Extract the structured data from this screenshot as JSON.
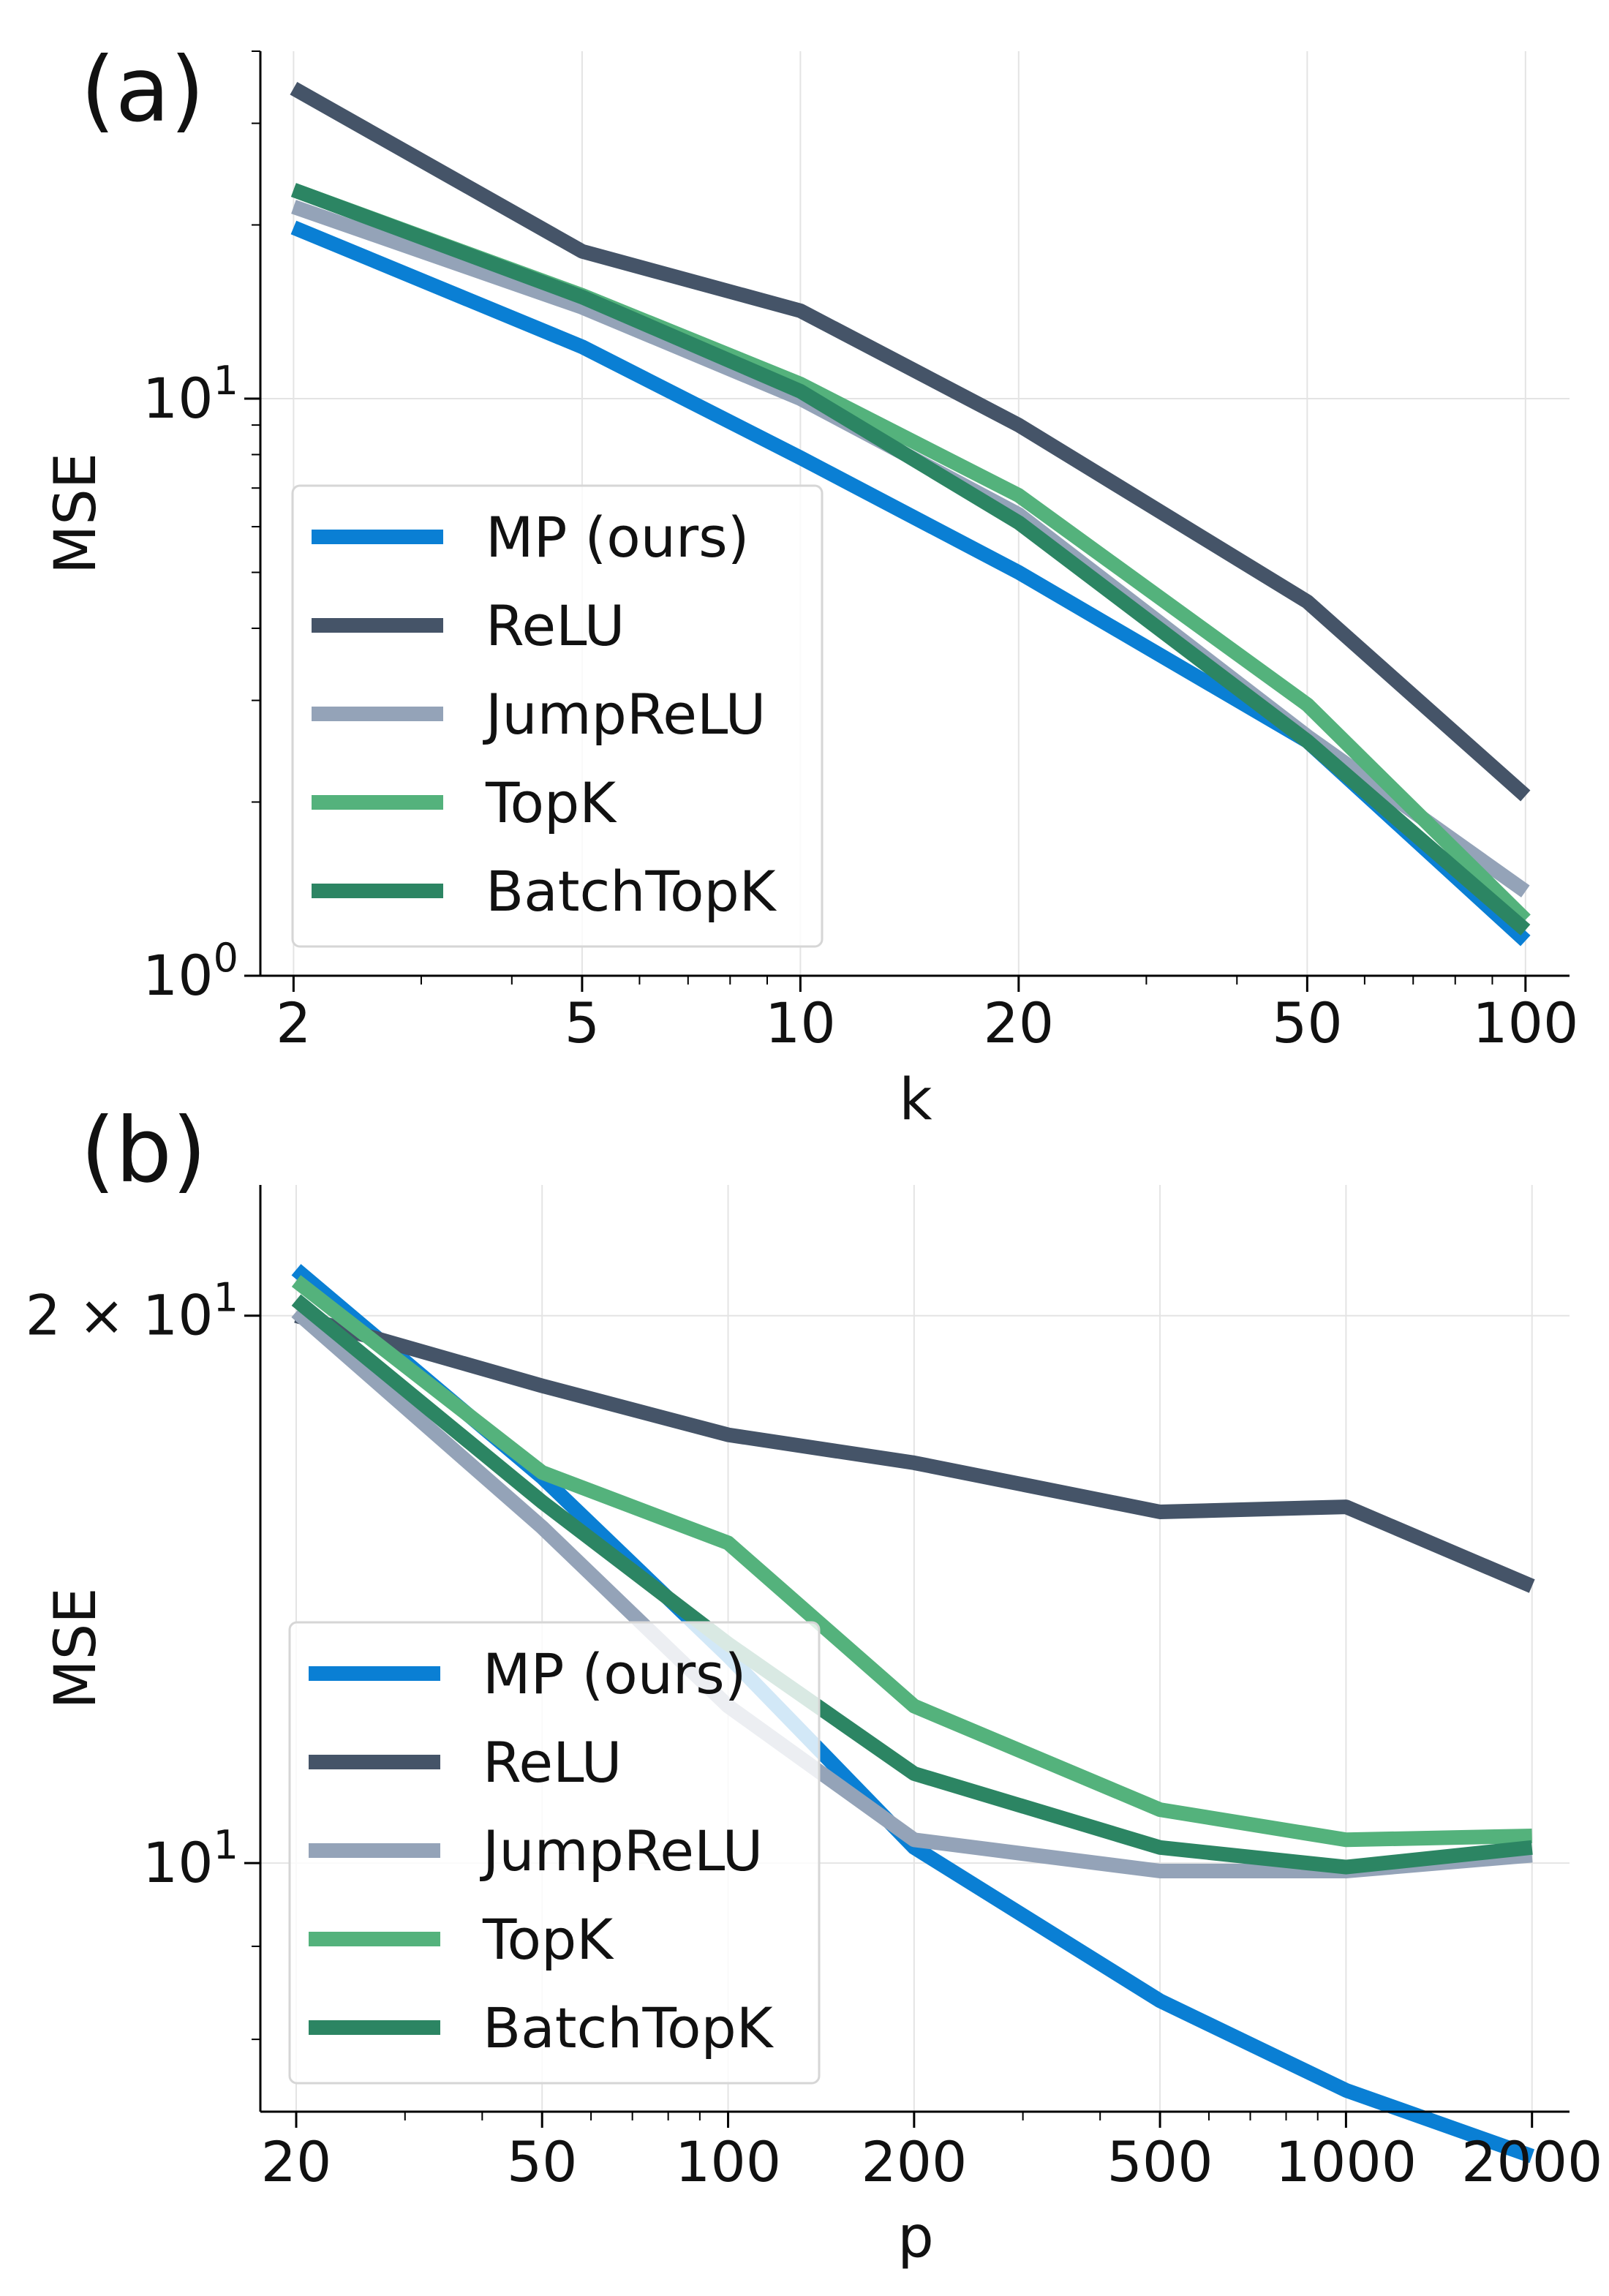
{
  "chart_data": [
    {
      "type": "line",
      "panel_label": "(a)",
      "xlabel": "k",
      "ylabel": "MSE",
      "x_scale": "log",
      "y_scale": "log",
      "xlim": [
        1.8,
        115
      ],
      "ylim": [
        1.0,
        40
      ],
      "grid": true,
      "legend_position": "lower-left",
      "xticks": [
        {
          "value": 2,
          "label": "2"
        },
        {
          "value": 5,
          "label": "5"
        },
        {
          "value": 10,
          "label": "10"
        },
        {
          "value": 20,
          "label": "20"
        },
        {
          "value": 50,
          "label": "50"
        },
        {
          "value": 100,
          "label": "100"
        }
      ],
      "yticks": [
        {
          "value": 1,
          "base": "10",
          "exp": "0"
        },
        {
          "value": 10,
          "base": "10",
          "exp": "1"
        }
      ],
      "x": [
        2,
        5,
        10,
        20,
        50,
        100
      ],
      "series": [
        {
          "name": "MP (ours)",
          "color": "#0a7fd4",
          "values": [
            19.8,
            12.3,
            7.9,
            5.0,
            2.55,
            1.15
          ]
        },
        {
          "name": "ReLU",
          "color": "#455468",
          "values": [
            34.5,
            18.0,
            14.2,
            9.0,
            4.45,
            2.05
          ]
        },
        {
          "name": "JumpReLU",
          "color": "#94a3b8",
          "values": [
            21.5,
            14.4,
            10.0,
            6.3,
            2.6,
            1.4
          ]
        },
        {
          "name": "TopK",
          "color": "#54b27c",
          "values": [
            23.0,
            15.1,
            10.6,
            6.8,
            2.95,
            1.25
          ]
        },
        {
          "name": "BatchTopK",
          "color": "#2c8563",
          "values": [
            23.0,
            15.0,
            10.3,
            6.1,
            2.55,
            1.2
          ]
        }
      ]
    },
    {
      "type": "line",
      "panel_label": "(b)",
      "xlabel": "p",
      "ylabel": "MSE",
      "x_scale": "log",
      "y_scale": "log",
      "xlim": [
        17.5,
        2300
      ],
      "ylim": [
        7.3,
        23.6
      ],
      "grid": true,
      "legend_position": "lower-left",
      "xticks": [
        {
          "value": 20,
          "label": "20"
        },
        {
          "value": 50,
          "label": "50"
        },
        {
          "value": 100,
          "label": "100"
        },
        {
          "value": 200,
          "label": "200"
        },
        {
          "value": 500,
          "label": "500"
        },
        {
          "value": 1000,
          "label": "1000"
        },
        {
          "value": 2000,
          "label": "2000"
        }
      ],
      "yticks": [
        {
          "value": 10,
          "base": "10",
          "exp": "1"
        },
        {
          "value": 20,
          "base": "2 × 10",
          "exp": "1"
        }
      ],
      "x": [
        20,
        50,
        100,
        200,
        500,
        1000,
        2000
      ],
      "series": [
        {
          "name": "MP (ours)",
          "color": "#0a7fd4",
          "values": [
            21.2,
            16.3,
            13.0,
            10.2,
            8.4,
            7.5,
            6.9
          ]
        },
        {
          "name": "ReLU",
          "color": "#455468",
          "values": [
            20.0,
            18.3,
            17.2,
            16.6,
            15.6,
            15.7,
            14.2
          ]
        },
        {
          "name": "JumpReLU",
          "color": "#94a3b8",
          "values": [
            20.1,
            15.3,
            12.2,
            10.3,
            9.9,
            9.9,
            10.1
          ]
        },
        {
          "name": "TopK",
          "color": "#54b27c",
          "values": [
            20.9,
            16.4,
            15.0,
            12.2,
            10.7,
            10.3,
            10.35
          ]
        },
        {
          "name": "BatchTopK",
          "color": "#2c8563",
          "values": [
            20.4,
            15.8,
            13.2,
            11.2,
            10.2,
            9.95,
            10.2
          ]
        }
      ]
    }
  ]
}
